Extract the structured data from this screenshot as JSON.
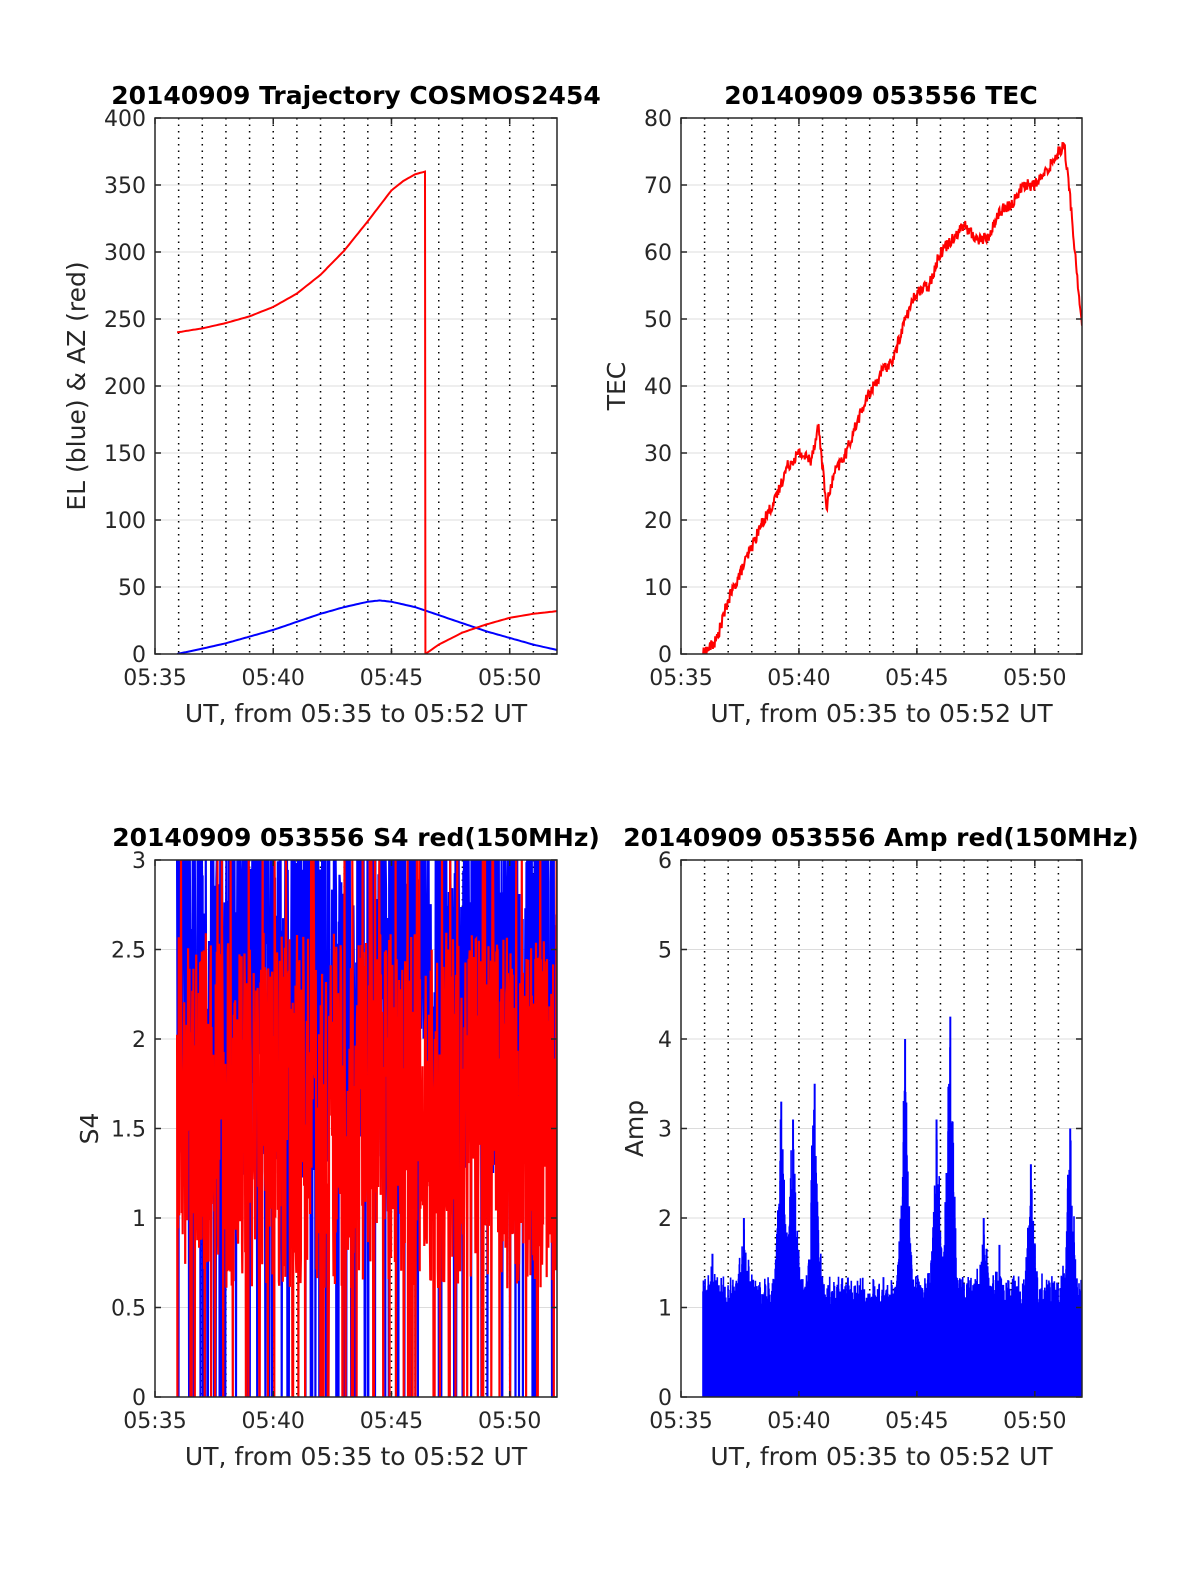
{
  "colors": {
    "elevation": "#0000ff",
    "azimuth": "#ff0000",
    "tec": "#ff0000",
    "s4_blue": "#0000ff",
    "s4_red": "#ff0000",
    "amp": "#0000ff",
    "axis": "#262626",
    "minor_grid": "#000000",
    "major_grid": "#dcdcdc"
  },
  "chart_data": [
    {
      "id": "trajectory",
      "type": "line",
      "title": "20140909 Trajectory COSMOS2454",
      "xlabel": "UT, from 05:35 to 05:52 UT",
      "ylabel": "EL (blue) & AZ (red)",
      "xlim": [
        "05:35",
        "05:52"
      ],
      "ylim": [
        0,
        400
      ],
      "xticks": [
        "05:35",
        "05:40",
        "05:45",
        "05:50"
      ],
      "yticks": [
        "0",
        "50",
        "100",
        "150",
        "200",
        "250",
        "300",
        "350",
        "400"
      ],
      "grid": "dotted vertical lines every minute",
      "series": [
        {
          "color": "blue",
          "x": [
            "05:35:56",
            "05:37:00",
            "05:38:00",
            "05:39:00",
            "05:40:00",
            "05:41:00",
            "05:42:00",
            "05:43:00",
            "05:44:00",
            "05:44:30",
            "05:45:00",
            "05:46:00",
            "05:47:00",
            "05:48:00",
            "05:49:00",
            "05:50:00",
            "05:51:00",
            "05:52:00"
          ],
          "values": [
            0,
            4,
            8,
            13,
            18,
            24,
            30,
            35,
            39,
            40,
            39,
            35,
            29,
            23,
            17,
            12,
            7,
            3
          ]
        },
        {
          "color": "red",
          "x": [
            "05:35:56",
            "05:37:00",
            "05:38:00",
            "05:39:00",
            "05:40:00",
            "05:41:00",
            "05:42:00",
            "05:43:00",
            "05:44:00",
            "05:45:00",
            "05:45:30",
            "05:46:00",
            "05:46:25",
            "05:46:26",
            "05:47:00",
            "05:48:00",
            "05:49:00",
            "05:50:00",
            "05:51:00",
            "05:52:00"
          ],
          "values": [
            240,
            243,
            247,
            252,
            259,
            269,
            283,
            301,
            323,
            346,
            353,
            358,
            360,
            0,
            7,
            16,
            22,
            27,
            30,
            32
          ]
        }
      ]
    },
    {
      "id": "tec",
      "type": "line",
      "title": "20140909 053556 TEC",
      "xlabel": "UT, from 05:35 to 05:52 UT",
      "ylabel": "TEC",
      "xlim": [
        "05:35",
        "05:52"
      ],
      "ylim": [
        0,
        80
      ],
      "xticks": [
        "05:35",
        "05:40",
        "05:45",
        "05:50"
      ],
      "yticks": [
        "0",
        "10",
        "20",
        "30",
        "40",
        "50",
        "60",
        "70",
        "80"
      ],
      "grid": "dotted vertical lines every minute",
      "series": [
        {
          "color": "red",
          "x": [
            "05:35:56",
            "05:36:30",
            "05:37:00",
            "05:37:30",
            "05:38:00",
            "05:38:30",
            "05:39:00",
            "05:39:30",
            "05:40:00",
            "05:40:30",
            "05:40:50",
            "05:41:10",
            "05:41:30",
            "05:42:00",
            "05:42:30",
            "05:43:00",
            "05:43:30",
            "05:44:00",
            "05:44:30",
            "05:45:00",
            "05:45:30",
            "05:46:00",
            "05:46:30",
            "05:47:00",
            "05:47:30",
            "05:48:00",
            "05:48:30",
            "05:49:00",
            "05:49:30",
            "05:50:00",
            "05:50:30",
            "05:51:00",
            "05:51:15",
            "05:51:30",
            "05:51:45",
            "05:52:00"
          ],
          "values": [
            0,
            2,
            8,
            12,
            16,
            20,
            23,
            28,
            30,
            29,
            34,
            22,
            27,
            30,
            35,
            39,
            42,
            44,
            50,
            54,
            55,
            60,
            62,
            64,
            62,
            62,
            66,
            67,
            70,
            70,
            72,
            75,
            76,
            68,
            58,
            49
          ]
        }
      ]
    },
    {
      "id": "s4",
      "type": "line",
      "title": "20140909 053556 S4 red(150MHz)",
      "xlabel": "UT, from 05:35 to 05:52 UT",
      "ylabel": "S4",
      "xlim": [
        "05:35",
        "05:52"
      ],
      "ylim": [
        0,
        3
      ],
      "xticks": [
        "05:35",
        "05:40",
        "05:45",
        "05:50"
      ],
      "yticks": [
        "0",
        "0.5",
        "1",
        "1.5",
        "2",
        "2.5",
        "3"
      ],
      "grid": "dotted vertical lines every minute",
      "series": [
        {
          "color": "blue",
          "x_start": "05:35:56",
          "x_end": "05:52:00",
          "min": 0,
          "max": 3,
          "typical_range": [
            1.2,
            3
          ]
        },
        {
          "color": "red",
          "x_start": "05:35:56",
          "x_end": "05:52:00",
          "min": 0,
          "max": 3,
          "typical_range": [
            0.6,
            2.6
          ]
        }
      ]
    },
    {
      "id": "amp",
      "type": "line",
      "title": "20140909 053556 Amp red(150MHz)",
      "xlabel": "UT, from 05:35 to 05:52 UT",
      "ylabel": "Amp",
      "xlim": [
        "05:35",
        "05:52"
      ],
      "ylim": [
        0,
        6
      ],
      "xticks": [
        "05:35",
        "05:40",
        "05:45",
        "05:50"
      ],
      "yticks": [
        "0",
        "1",
        "2",
        "3",
        "4",
        "5",
        "6"
      ],
      "grid": "dotted vertical lines every minute",
      "series": [
        {
          "color": "blue",
          "x_start": "05:35:56",
          "x_end": "05:52:00",
          "min": 0,
          "baseline_max": 1.4,
          "peaks": [
            {
              "x": "05:36:20",
              "value": 1.6
            },
            {
              "x": "05:37:40",
              "value": 2.0
            },
            {
              "x": "05:39:15",
              "value": 3.3
            },
            {
              "x": "05:39:45",
              "value": 3.1
            },
            {
              "x": "05:40:40",
              "value": 3.5
            },
            {
              "x": "05:44:30",
              "value": 4.0
            },
            {
              "x": "05:45:50",
              "value": 3.1
            },
            {
              "x": "05:46:25",
              "value": 4.25
            },
            {
              "x": "05:47:50",
              "value": 2.0
            },
            {
              "x": "05:48:30",
              "value": 1.7
            },
            {
              "x": "05:49:50",
              "value": 2.6
            },
            {
              "x": "05:51:30",
              "value": 3.0
            }
          ]
        }
      ]
    }
  ]
}
